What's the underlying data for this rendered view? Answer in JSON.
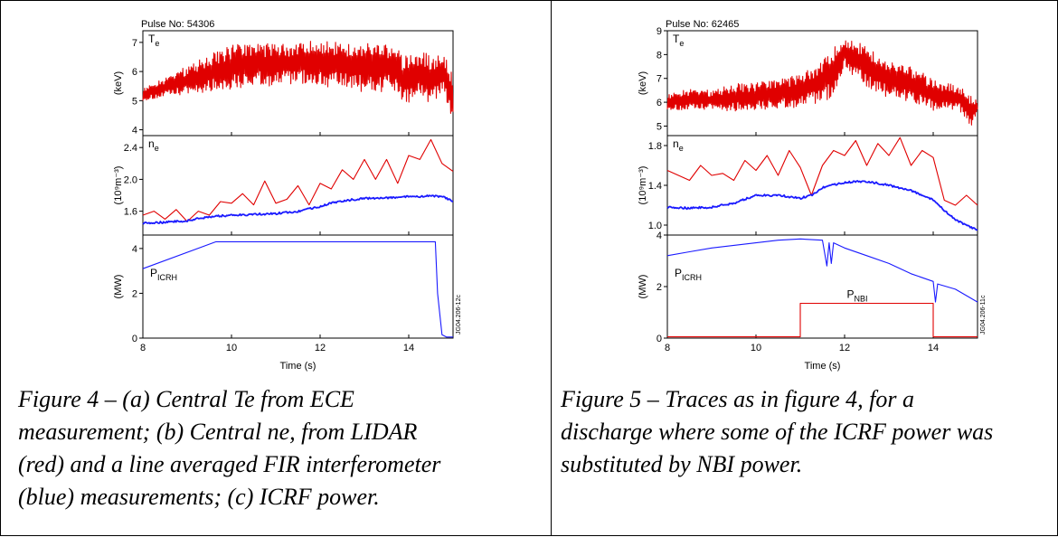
{
  "figures": [
    {
      "pulse": "Pulse No: 54306",
      "code": "JG04.206-12c",
      "xlabel": "Time (s)",
      "caption_lines": [
        "Figure 4 – (a) Central Te from ECE",
        "measurement; (b) Central ne, from LIDAR",
        "(red) and a line averaged FIR interferometer",
        "(blue) measurements; (c) ICRF power."
      ]
    },
    {
      "pulse": "Pulse No: 62465",
      "code": "JG04.206-11c",
      "xlabel": "Time (s)",
      "caption_lines": [
        "Figure 5 – Traces as in figure 4, for a",
        "discharge where some of the ICRF power was",
        "substituted by NBI power."
      ]
    }
  ],
  "chart_data": [
    {
      "type": "line",
      "panel": "figure-4a",
      "label": "Te",
      "ylabel": "(keV)",
      "xlim": [
        8,
        15
      ],
      "ylim": [
        3.8,
        7.4
      ],
      "yticks": [
        "4",
        "5",
        "6",
        "7"
      ],
      "series": [
        {
          "color": "#e00000",
          "x": [
            8.0,
            8.5,
            9.0,
            9.5,
            10.0,
            10.5,
            11.0,
            11.5,
            12.0,
            12.5,
            13.0,
            13.3,
            13.6,
            13.9,
            14.2,
            14.5,
            14.8,
            15.0
          ],
          "y_low": [
            5.0,
            5.1,
            5.2,
            5.3,
            5.4,
            5.5,
            5.5,
            5.6,
            5.5,
            5.4,
            5.3,
            5.2,
            5.5,
            4.7,
            5.2,
            4.8,
            5.3,
            3.9
          ],
          "y_high": [
            5.4,
            5.8,
            6.2,
            6.6,
            6.9,
            7.0,
            7.0,
            7.0,
            7.1,
            7.0,
            7.1,
            7.0,
            6.9,
            6.6,
            6.7,
            6.6,
            6.6,
            6.0
          ]
        }
      ]
    },
    {
      "type": "line",
      "panel": "figure-4b",
      "label": "ne",
      "ylabel": "(10⁹m⁻³)",
      "xlim": [
        8,
        15
      ],
      "ylim": [
        1.3,
        2.55
      ],
      "yticks": [
        "1.6",
        "2.0",
        "2.4"
      ],
      "series": [
        {
          "name": "LIDAR",
          "color": "#e00000",
          "x": [
            8.0,
            8.25,
            8.5,
            8.75,
            9.0,
            9.25,
            9.5,
            9.75,
            10.0,
            10.25,
            10.5,
            10.75,
            11.0,
            11.25,
            11.5,
            11.75,
            12.0,
            12.25,
            12.5,
            12.75,
            13.0,
            13.25,
            13.5,
            13.75,
            14.0,
            14.25,
            14.5,
            14.75,
            15.0
          ],
          "y": [
            1.55,
            1.6,
            1.5,
            1.62,
            1.47,
            1.6,
            1.55,
            1.72,
            1.7,
            1.82,
            1.68,
            1.98,
            1.7,
            1.75,
            1.92,
            1.68,
            1.95,
            1.88,
            2.12,
            2.0,
            2.25,
            2.0,
            2.25,
            1.95,
            2.3,
            2.25,
            2.5,
            2.2,
            2.1
          ]
        },
        {
          "name": "FIR interferometer",
          "color": "#1a1aff",
          "x": [
            8.0,
            8.5,
            9.0,
            9.5,
            10.0,
            10.5,
            11.0,
            11.5,
            12.0,
            12.25,
            12.5,
            13.0,
            13.5,
            14.0,
            14.5,
            14.8,
            15.0
          ],
          "y": [
            1.45,
            1.46,
            1.48,
            1.53,
            1.55,
            1.56,
            1.57,
            1.6,
            1.66,
            1.7,
            1.73,
            1.76,
            1.77,
            1.78,
            1.79,
            1.78,
            1.72
          ]
        }
      ]
    },
    {
      "type": "line",
      "panel": "figure-4c",
      "label": "PICRH",
      "ylabel": "(MW)",
      "xlim": [
        8,
        15
      ],
      "ylim": [
        0,
        4.6
      ],
      "yticks": [
        "0",
        "2",
        "4"
      ],
      "xticks": [
        "8",
        "10",
        "12",
        "14"
      ],
      "series": [
        {
          "name": "PICRH",
          "color": "#1a1aff",
          "x": [
            8.0,
            9.65,
            10.0,
            12.0,
            14.0,
            14.6,
            14.65,
            14.75,
            14.85,
            15.0
          ],
          "y": [
            3.1,
            4.3,
            4.3,
            4.3,
            4.3,
            4.3,
            2.0,
            0.15,
            0.05,
            0.05
          ]
        }
      ]
    },
    {
      "type": "line",
      "panel": "figure-5a",
      "label": "Te",
      "ylabel": "(keV)",
      "xlim": [
        8,
        15
      ],
      "ylim": [
        4.6,
        9.0
      ],
      "yticks": [
        "5",
        "6",
        "7",
        "8",
        "9"
      ],
      "series": [
        {
          "color": "#e00000",
          "x": [
            8.0,
            8.5,
            9.0,
            9.5,
            10.0,
            10.5,
            11.0,
            11.5,
            11.75,
            12.0,
            12.5,
            13.0,
            13.5,
            14.0,
            14.3,
            14.6,
            14.85,
            15.0
          ],
          "y_low": [
            5.7,
            5.6,
            5.7,
            5.6,
            5.7,
            5.7,
            5.8,
            6.0,
            6.2,
            7.5,
            6.5,
            6.2,
            6.0,
            5.6,
            5.7,
            5.6,
            4.9,
            5.5
          ],
          "y_high": [
            6.3,
            6.6,
            6.5,
            6.8,
            6.8,
            7.0,
            7.2,
            7.8,
            8.3,
            8.7,
            8.4,
            7.8,
            7.5,
            7.0,
            6.8,
            6.7,
            6.3,
            6.1
          ]
        }
      ]
    },
    {
      "type": "line",
      "panel": "figure-5b",
      "label": "ne",
      "ylabel": "(10⁹m⁻³)",
      "xlim": [
        8,
        15
      ],
      "ylim": [
        0.9,
        1.9
      ],
      "yticks": [
        "1.0",
        "1.4",
        "1.8"
      ],
      "series": [
        {
          "name": "LIDAR",
          "color": "#e00000",
          "x": [
            8.0,
            8.25,
            8.5,
            8.75,
            9.0,
            9.25,
            9.5,
            9.75,
            10.0,
            10.25,
            10.5,
            10.75,
            11.0,
            11.25,
            11.5,
            11.75,
            12.0,
            12.25,
            12.5,
            12.75,
            13.0,
            13.25,
            13.5,
            13.75,
            14.0,
            14.25,
            14.5,
            14.75,
            15.0
          ],
          "y": [
            1.55,
            1.5,
            1.45,
            1.6,
            1.5,
            1.52,
            1.45,
            1.65,
            1.55,
            1.7,
            1.5,
            1.75,
            1.58,
            1.3,
            1.6,
            1.75,
            1.7,
            1.85,
            1.6,
            1.82,
            1.7,
            1.88,
            1.6,
            1.75,
            1.68,
            1.25,
            1.2,
            1.3,
            1.2
          ]
        },
        {
          "name": "FIR interferometer",
          "color": "#1a1aff",
          "x": [
            8.0,
            8.5,
            9.0,
            9.5,
            10.0,
            10.5,
            11.0,
            11.25,
            11.5,
            12.0,
            12.5,
            13.0,
            13.5,
            14.0,
            14.5,
            15.0
          ],
          "y": [
            1.18,
            1.17,
            1.18,
            1.22,
            1.3,
            1.3,
            1.27,
            1.3,
            1.38,
            1.43,
            1.44,
            1.4,
            1.35,
            1.25,
            1.05,
            0.95
          ]
        }
      ]
    },
    {
      "type": "line",
      "panel": "figure-5c",
      "label": "PICRH",
      "ylabel": "(MW)",
      "xlim": [
        8,
        15
      ],
      "ylim": [
        0,
        4.0
      ],
      "yticks": [
        "0",
        "2",
        "4"
      ],
      "xticks": [
        "8",
        "10",
        "12",
        "14"
      ],
      "series": [
        {
          "name": "PICRH",
          "color": "#1a1aff",
          "x": [
            8.0,
            8.5,
            9.0,
            9.5,
            10.0,
            10.5,
            11.0,
            11.5,
            11.6,
            11.65,
            11.7,
            11.75,
            12.0,
            12.5,
            13.0,
            13.5,
            14.0,
            14.05,
            14.1,
            14.5,
            15.0
          ],
          "y": [
            3.2,
            3.35,
            3.5,
            3.6,
            3.7,
            3.8,
            3.85,
            3.8,
            2.8,
            3.7,
            2.9,
            3.7,
            3.5,
            3.2,
            2.9,
            2.5,
            2.2,
            1.4,
            2.1,
            1.9,
            1.4
          ]
        },
        {
          "name": "PNBI",
          "color": "#e00000",
          "x": [
            8.0,
            11.0,
            11.0,
            14.0,
            14.0,
            15.0
          ],
          "y": [
            0.05,
            0.05,
            1.35,
            1.35,
            0.05,
            0.05
          ]
        }
      ]
    }
  ]
}
